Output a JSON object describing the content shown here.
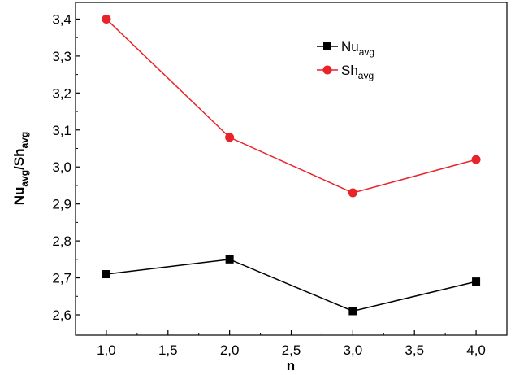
{
  "chart_data": {
    "type": "line",
    "title": "",
    "xlabel": "n",
    "ylabel": {
      "base1": "Nu",
      "sub1": "avg",
      "sep": "/",
      "base2": "Sh",
      "sub2": "avg"
    },
    "x": [
      1.0,
      2.0,
      3.0,
      4.0
    ],
    "xlim": [
      0.75,
      4.25
    ],
    "ylim": [
      2.545,
      3.445
    ],
    "xticks": [
      1.0,
      1.5,
      2.0,
      2.5,
      3.0,
      3.5,
      4.0
    ],
    "xtick_labels": [
      "1,0",
      "1,5",
      "2,0",
      "2,5",
      "3,0",
      "3,5",
      "4,0"
    ],
    "yticks": [
      2.6,
      2.7,
      2.8,
      2.9,
      3.0,
      3.1,
      3.2,
      3.3,
      3.4
    ],
    "ytick_labels": [
      "2,6",
      "2,7",
      "2,8",
      "2,9",
      "3,0",
      "3,1",
      "3,2",
      "3,3",
      "3,4"
    ],
    "grid": false,
    "legend_position": "top-right",
    "series": [
      {
        "name_base": "Nu",
        "name_sub": "avg",
        "values": [
          2.71,
          2.75,
          2.61,
          2.69
        ],
        "color": "#000000",
        "marker": "square"
      },
      {
        "name_base": "Sh",
        "name_sub": "avg",
        "values": [
          3.4,
          3.08,
          2.93,
          3.02
        ],
        "color": "#e8232a",
        "marker": "circle"
      }
    ]
  }
}
